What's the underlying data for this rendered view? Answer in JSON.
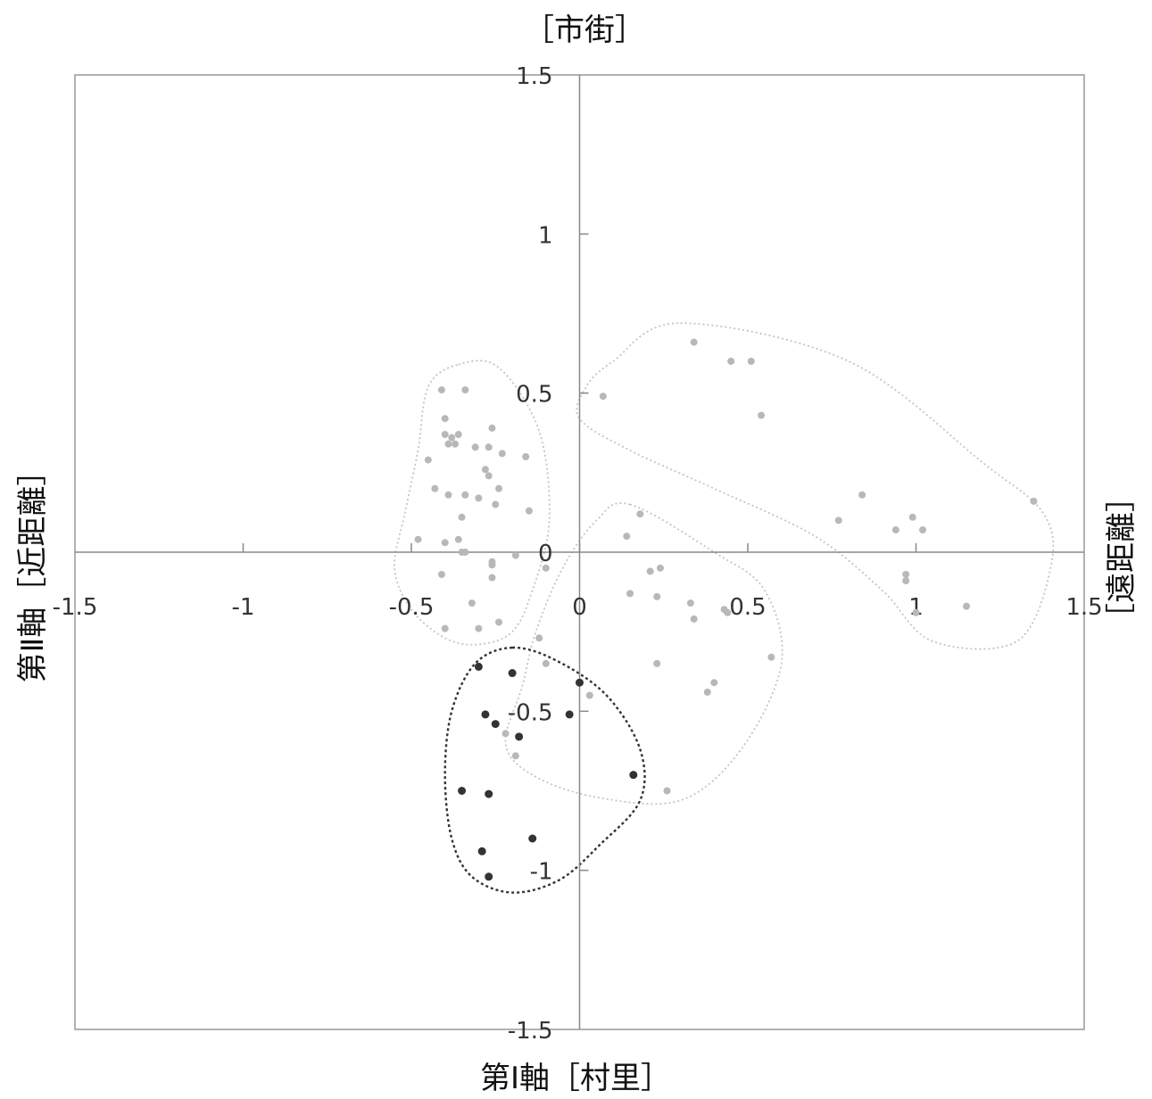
{
  "chart_data": {
    "type": "scatter",
    "labels": {
      "top": "［市街］",
      "right": "［遠距離］",
      "bottom": "第Ⅰ軸［村里］",
      "left": "第Ⅱ軸［近距離］"
    },
    "xlim": [
      -1.5,
      1.5
    ],
    "ylim": [
      -1.5,
      1.5
    ],
    "x_ticks": [
      {
        "v": -1.5,
        "label": "-1.5"
      },
      {
        "v": -1,
        "label": "-1"
      },
      {
        "v": -0.5,
        "label": "-0.5"
      },
      {
        "v": 0,
        "label": "0"
      },
      {
        "v": 0.5,
        "label": "0.5"
      },
      {
        "v": 1,
        "label": "1"
      },
      {
        "v": 1.5,
        "label": "1.5"
      }
    ],
    "y_ticks": [
      {
        "v": 1.5,
        "label": "1.5"
      },
      {
        "v": 1,
        "label": "1"
      },
      {
        "v": 0.5,
        "label": "0.5"
      },
      {
        "v": 0,
        "label": "0"
      },
      {
        "v": -0.5,
        "label": "-0.5"
      },
      {
        "v": -1,
        "label": "-1"
      },
      {
        "v": -1.5,
        "label": "-1.5"
      }
    ],
    "grid": false,
    "colors": {
      "highlight": "#333333",
      "other": "#b8b8b8",
      "axis": "#888888",
      "frame": "#999999"
    },
    "series": [
      {
        "color": "#b8b8b8",
        "points": [
          [
            -0.41,
            0.51
          ],
          [
            -0.34,
            0.51
          ],
          [
            -0.4,
            0.42
          ],
          [
            -0.4,
            0.37
          ],
          [
            -0.38,
            0.36
          ],
          [
            -0.36,
            0.37
          ],
          [
            -0.39,
            0.34
          ],
          [
            -0.37,
            0.34
          ],
          [
            -0.31,
            0.33
          ],
          [
            -0.27,
            0.33
          ],
          [
            -0.26,
            0.39
          ],
          [
            -0.23,
            0.31
          ],
          [
            -0.45,
            0.29
          ],
          [
            -0.28,
            0.26
          ],
          [
            -0.27,
            0.24
          ],
          [
            -0.24,
            0.2
          ],
          [
            -0.16,
            0.3
          ],
          [
            -0.43,
            0.2
          ],
          [
            -0.39,
            0.18
          ],
          [
            -0.25,
            0.15
          ],
          [
            -0.34,
            0.18
          ],
          [
            -0.3,
            0.17
          ],
          [
            -0.15,
            0.13
          ],
          [
            -0.35,
            0.11
          ],
          [
            -0.48,
            0.04
          ],
          [
            -0.36,
            0.04
          ],
          [
            -0.4,
            0.03
          ],
          [
            -0.35,
            0.0
          ],
          [
            -0.34,
            0.0
          ],
          [
            -0.26,
            -0.03
          ],
          [
            -0.26,
            -0.04
          ],
          [
            -0.19,
            -0.01
          ],
          [
            -0.41,
            -0.07
          ],
          [
            -0.26,
            -0.08
          ],
          [
            -0.32,
            -0.16
          ],
          [
            -0.4,
            -0.24
          ],
          [
            -0.3,
            -0.24
          ],
          [
            -0.24,
            -0.22
          ],
          [
            -0.1,
            -0.05
          ],
          [
            -0.12,
            -0.27
          ],
          [
            -0.1,
            -0.35
          ],
          [
            0.07,
            0.49
          ],
          [
            0.34,
            0.66
          ],
          [
            0.45,
            0.6
          ],
          [
            0.51,
            0.6
          ],
          [
            0.54,
            0.43
          ],
          [
            0.84,
            0.18
          ],
          [
            0.77,
            0.1
          ],
          [
            0.99,
            0.11
          ],
          [
            0.94,
            0.07
          ],
          [
            1.02,
            0.07
          ],
          [
            1.35,
            0.16
          ],
          [
            0.97,
            -0.07
          ],
          [
            0.97,
            -0.09
          ],
          [
            1.0,
            -0.19
          ],
          [
            1.15,
            -0.17
          ],
          [
            0.18,
            0.12
          ],
          [
            0.14,
            0.05
          ],
          [
            0.21,
            -0.06
          ],
          [
            0.24,
            -0.05
          ],
          [
            0.15,
            -0.13
          ],
          [
            0.23,
            -0.14
          ],
          [
            0.33,
            -0.16
          ],
          [
            0.34,
            -0.21
          ],
          [
            0.44,
            -0.19
          ],
          [
            0.43,
            -0.18
          ],
          [
            0.57,
            -0.33
          ],
          [
            0.23,
            -0.35
          ],
          [
            0.4,
            -0.41
          ],
          [
            0.38,
            -0.44
          ],
          [
            0.03,
            -0.45
          ],
          [
            0.26,
            -0.75
          ],
          [
            -0.19,
            -0.64
          ],
          [
            -0.22,
            -0.57
          ]
        ]
      },
      {
        "color": "#333333",
        "points": [
          [
            -0.3,
            -0.36
          ],
          [
            -0.2,
            -0.38
          ],
          [
            0.0,
            -0.41
          ],
          [
            -0.28,
            -0.51
          ],
          [
            -0.25,
            -0.54
          ],
          [
            -0.03,
            -0.51
          ],
          [
            -0.18,
            -0.58
          ],
          [
            0.16,
            -0.7
          ],
          [
            -0.35,
            -0.75
          ],
          [
            -0.27,
            -0.76
          ],
          [
            -0.14,
            -0.9
          ],
          [
            -0.29,
            -0.94
          ],
          [
            -0.27,
            -1.02
          ]
        ]
      }
    ],
    "regions": [
      {
        "color": "#c4c4c4",
        "points": [
          [
            -0.36,
            0.59
          ],
          [
            -0.24,
            0.58
          ],
          [
            -0.12,
            0.38
          ],
          [
            -0.09,
            0.1
          ],
          [
            -0.14,
            -0.12
          ],
          [
            -0.2,
            -0.25
          ],
          [
            -0.3,
            -0.29
          ],
          [
            -0.4,
            -0.27
          ],
          [
            -0.5,
            -0.18
          ],
          [
            -0.55,
            -0.05
          ],
          [
            -0.52,
            0.12
          ],
          [
            -0.48,
            0.32
          ],
          [
            -0.45,
            0.52
          ]
        ]
      },
      {
        "color": "#c4c4c4",
        "points": [
          [
            0.3,
            0.72
          ],
          [
            0.8,
            0.6
          ],
          [
            1.2,
            0.28
          ],
          [
            1.38,
            0.12
          ],
          [
            1.4,
            -0.05
          ],
          [
            1.3,
            -0.28
          ],
          [
            1.05,
            -0.28
          ],
          [
            0.9,
            -0.12
          ],
          [
            0.7,
            0.05
          ],
          [
            0.4,
            0.2
          ],
          [
            0.15,
            0.32
          ],
          [
            0.0,
            0.42
          ],
          [
            0.02,
            0.52
          ],
          [
            0.1,
            0.6
          ]
        ]
      },
      {
        "color": "#c4c4c4",
        "points": [
          [
            0.15,
            0.15
          ],
          [
            0.4,
            0.0
          ],
          [
            0.55,
            -0.12
          ],
          [
            0.6,
            -0.35
          ],
          [
            0.48,
            -0.62
          ],
          [
            0.3,
            -0.78
          ],
          [
            0.05,
            -0.77
          ],
          [
            -0.14,
            -0.7
          ],
          [
            -0.22,
            -0.6
          ],
          [
            -0.17,
            -0.42
          ],
          [
            -0.13,
            -0.25
          ],
          [
            -0.05,
            -0.05
          ],
          [
            0.05,
            0.1
          ]
        ]
      },
      {
        "color": "#333333",
        "points": [
          [
            -0.2,
            -0.3
          ],
          [
            -0.07,
            -0.34
          ],
          [
            0.08,
            -0.45
          ],
          [
            0.18,
            -0.62
          ],
          [
            0.18,
            -0.78
          ],
          [
            0.06,
            -0.92
          ],
          [
            -0.06,
            -1.03
          ],
          [
            -0.2,
            -1.07
          ],
          [
            -0.32,
            -1.02
          ],
          [
            -0.38,
            -0.9
          ],
          [
            -0.4,
            -0.7
          ],
          [
            -0.38,
            -0.5
          ],
          [
            -0.31,
            -0.35
          ]
        ]
      }
    ]
  }
}
